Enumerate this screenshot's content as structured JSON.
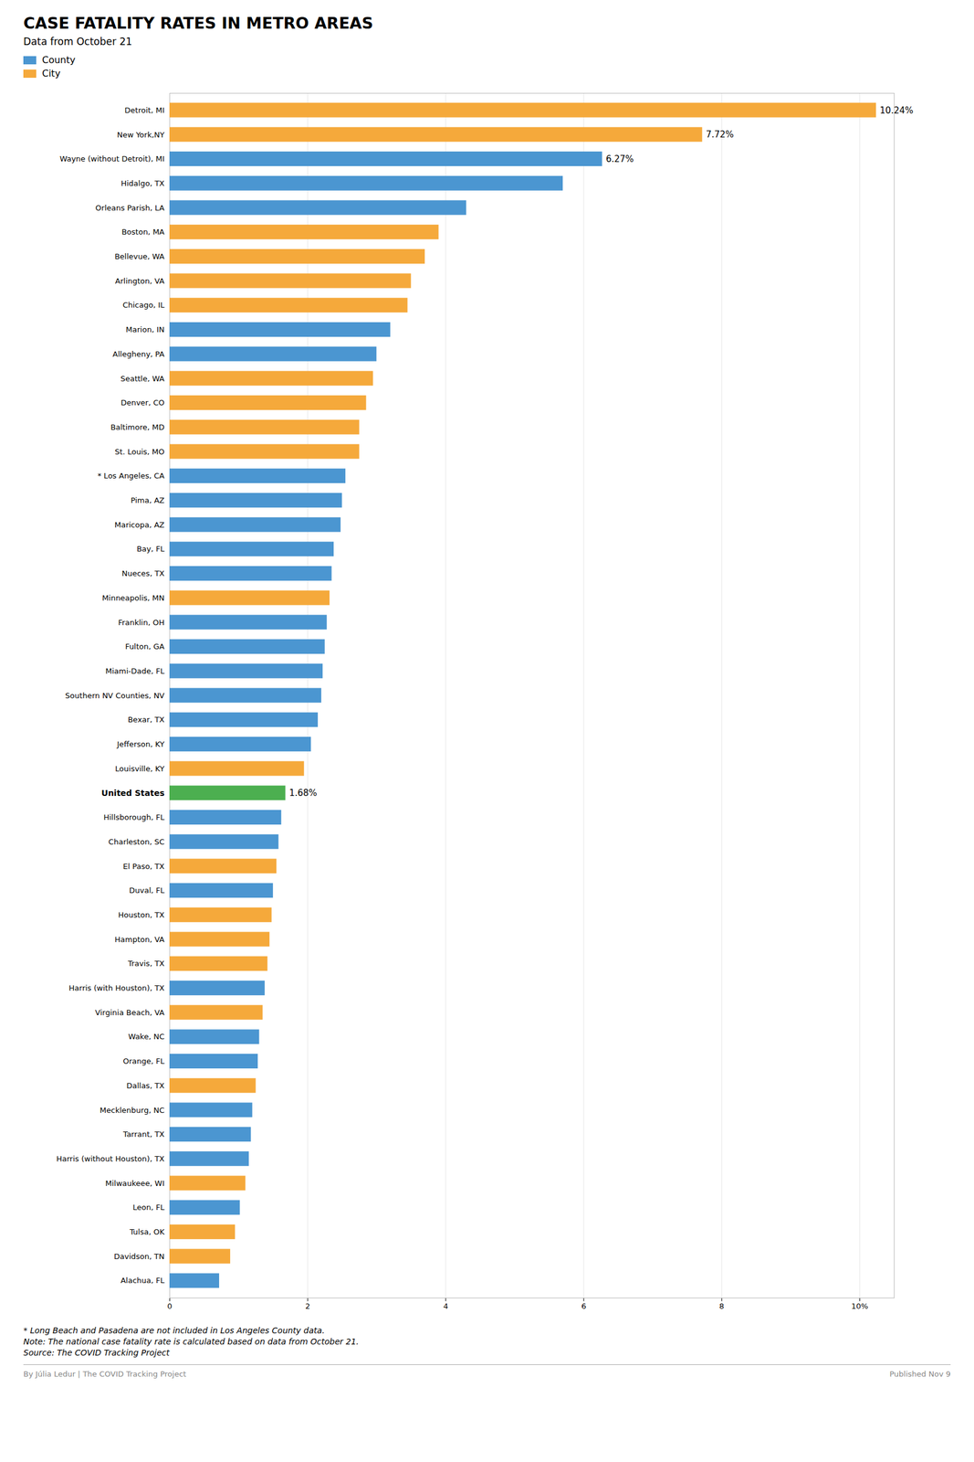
{
  "chart_data": {
    "type": "bar",
    "orientation": "horizontal",
    "title": "CASE FATALITY RATES IN METRO AREAS",
    "subtitle": "Data from October 21",
    "notes": [
      "* Long Beach and Pasadena are not included in Los Angeles County data.",
      "Note: The national case fatality rate is calculated based on data from October 21.",
      "Source: The COVID Tracking Project"
    ],
    "footer": [
      "By Júlia Ledur | The COVID Tracking Project",
      "Published Nov 9"
    ],
    "categories": [
      "Detroit, MI",
      "New York,NY",
      "Wayne (without Detroit), MI",
      "Hidalgo, TX",
      "Orleans Parish, LA",
      "Boston, MA",
      "Bellevue, WA",
      "Arlington, VA",
      "Chicago, IL",
      "Marion, IN",
      "Allegheny, PA",
      "Seattle, WA",
      "Denver, CO",
      "Baltimore, MD",
      "St. Louis, MO",
      "* Los Angeles, CA",
      "Pima, AZ",
      "Maricopa, AZ",
      "Bay, FL",
      "Nueces, TX",
      "Minneapolis, MN",
      "Franklin, OH",
      "Fulton, GA",
      "Miami-Dade, FL",
      "Southern NV Counties, NV",
      "Bexar, TX",
      "Jefferson, KY",
      "Louisville, KY",
      "United States",
      "Hillsborough, FL",
      "Charleston, SC",
      "El Paso, TX",
      "Duval, FL",
      "Houston, TX",
      "Hampton, VA",
      "Travis, TX",
      "Harris (with Houston), TX",
      "Virginia Beach, VA",
      "Wake, NC",
      "Orange, FL",
      "Dallas, TX",
      "Mecklenburg, NC",
      "Tarrant, TX",
      "Harris (without Houston), TX",
      "Milwaukeee, WI",
      "Leon, FL",
      "Tulsa, OK",
      "Davidson, TN",
      "Alachua, FL"
    ],
    "series": [
      {
        "name": "County",
        "color": "#4B96D1",
        "values": [
          null,
          null,
          6.27,
          5.7,
          4.3,
          null,
          null,
          null,
          null,
          3.2,
          3.0,
          null,
          null,
          null,
          null,
          2.55,
          2.5,
          2.48,
          2.38,
          2.35,
          null,
          2.28,
          2.25,
          2.22,
          2.2,
          2.15,
          2.05,
          null,
          null,
          1.62,
          1.58,
          null,
          1.5,
          null,
          null,
          null,
          1.38,
          null,
          1.3,
          1.28,
          null,
          1.2,
          1.18,
          1.15,
          null,
          1.02,
          null,
          null,
          0.72
        ],
        "value_labels": [
          null,
          null,
          "6.27%",
          null,
          null,
          null,
          null,
          null,
          null,
          null,
          null,
          null,
          null,
          null,
          null,
          null,
          null,
          null,
          null,
          null,
          null,
          null,
          null,
          null,
          null,
          null,
          null,
          null,
          null,
          null,
          null,
          null,
          null,
          null,
          null,
          null,
          null,
          null,
          null,
          null,
          null,
          null,
          null,
          null,
          null,
          null,
          null,
          null,
          null
        ]
      },
      {
        "name": "City",
        "color": "#F5A93B",
        "values": [
          10.24,
          7.72,
          null,
          null,
          null,
          3.9,
          3.7,
          3.5,
          3.45,
          null,
          null,
          2.95,
          2.85,
          2.75,
          2.75,
          null,
          null,
          null,
          null,
          null,
          2.32,
          null,
          null,
          null,
          null,
          null,
          null,
          1.95,
          null,
          null,
          null,
          1.55,
          null,
          1.48,
          1.45,
          1.42,
          null,
          1.35,
          null,
          null,
          1.25,
          null,
          null,
          null,
          1.1,
          null,
          0.95,
          0.88,
          null
        ],
        "value_labels": [
          "10.24%",
          "7.72%",
          null,
          null,
          null,
          null,
          null,
          null,
          null,
          null,
          null,
          null,
          null,
          null,
          null,
          null,
          null,
          null,
          null,
          null,
          null,
          null,
          null,
          null,
          null,
          null,
          null,
          null,
          null,
          null,
          null,
          null,
          null,
          null,
          null,
          null,
          null,
          null,
          null,
          null,
          null,
          null,
          null,
          null,
          null,
          null,
          null,
          null,
          null
        ]
      },
      {
        "color": "#4CAF50",
        "values": [
          null,
          null,
          null,
          null,
          null,
          null,
          null,
          null,
          null,
          null,
          null,
          null,
          null,
          null,
          null,
          null,
          null,
          null,
          null,
          null,
          null,
          null,
          null,
          null,
          null,
          null,
          null,
          null,
          1.68,
          null,
          null,
          null,
          null,
          null,
          null,
          null,
          null,
          null,
          null,
          null,
          null,
          null,
          null,
          null,
          null,
          null,
          null,
          null,
          null
        ],
        "value_labels": [
          null,
          null,
          null,
          null,
          null,
          null,
          null,
          null,
          null,
          null,
          null,
          null,
          null,
          null,
          null,
          null,
          null,
          null,
          null,
          null,
          null,
          null,
          null,
          null,
          null,
          null,
          null,
          null,
          "1.68%",
          null,
          null,
          null,
          null,
          null,
          null,
          null,
          null,
          null,
          null,
          null,
          null,
          null,
          null,
          null,
          null,
          null,
          null,
          null,
          null
        ]
      }
    ],
    "xlim": [
      0,
      10.5
    ],
    "xticks": [
      0,
      2,
      4,
      6,
      8,
      {
        "value": 10,
        "label": "10%"
      }
    ],
    "grid": true
  }
}
